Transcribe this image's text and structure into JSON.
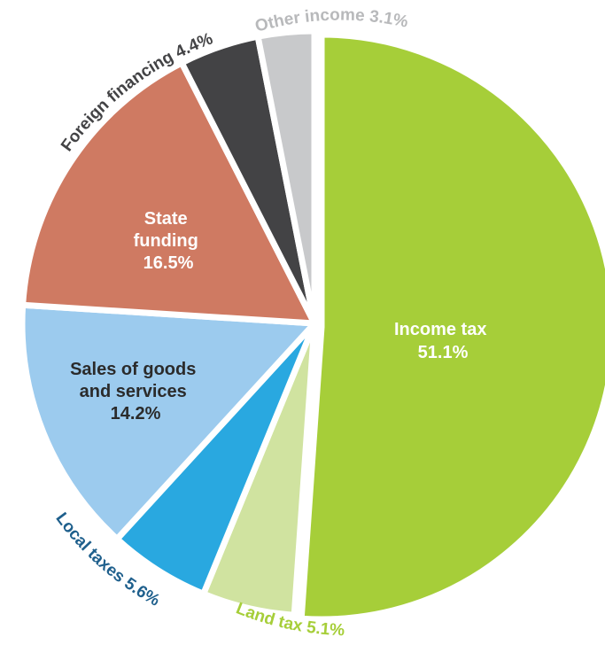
{
  "chart_data": {
    "type": "pie",
    "title": "",
    "start_angle_deg": 0,
    "direction": "clockwise",
    "legend": "none",
    "slices": [
      {
        "label": "Income tax",
        "value": 51.1,
        "display": "51.1%",
        "color": "#a6ce39",
        "label_color": "#ffffff",
        "label_placement": "inside"
      },
      {
        "label": "Land tax",
        "value": 5.1,
        "display": "5.1%",
        "color": "#d0e3a0",
        "label_color": "#a6ce39",
        "label_placement": "outside"
      },
      {
        "label": "Local taxes",
        "value": 5.6,
        "display": "5.6%",
        "color": "#29a8e0",
        "label_color": "#1e5f8c",
        "label_placement": "outside"
      },
      {
        "label": "Sales of goods and services",
        "value": 14.2,
        "display": "14.2%",
        "color": "#9ccbee",
        "label_color": "#2b2b2b",
        "label_placement": "inside"
      },
      {
        "label": "State funding",
        "value": 16.5,
        "display": "16.5%",
        "color": "#cf7a62",
        "label_color": "#ffffff",
        "label_placement": "inside"
      },
      {
        "label": "Foreign financing",
        "value": 4.4,
        "display": "4.4%",
        "color": "#434345",
        "label_color": "#434345",
        "label_placement": "outside"
      },
      {
        "label": "Other income",
        "value": 3.1,
        "display": "3.1%",
        "color": "#c8c9cb",
        "label_color": "#b8b9bb",
        "label_placement": "outside"
      }
    ]
  },
  "labels": {
    "income_tax": {
      "line1": "Income tax",
      "line2": "51.1%"
    },
    "sales": {
      "line1": "Sales of goods",
      "line2": "and services",
      "line3": "14.2%"
    },
    "state": {
      "line1": "State",
      "line2": "funding",
      "line3": "16.5%"
    },
    "land_tax": "Land tax 5.1%",
    "local_taxes": "Local taxes 5.6%",
    "foreign": "Foreign financing 4.4%",
    "other": "Other income 3.1%"
  }
}
